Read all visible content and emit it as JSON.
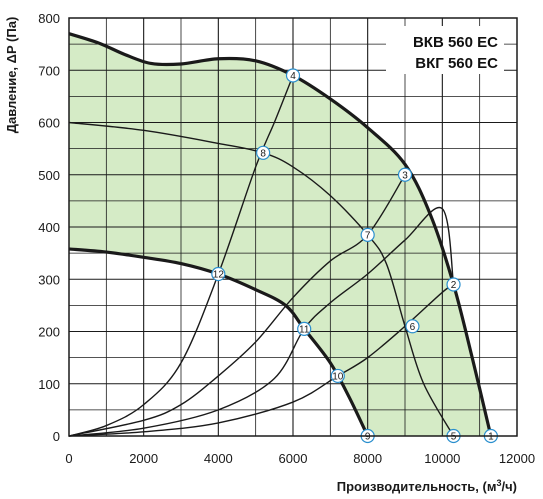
{
  "chart_data": {
    "type": "line",
    "xlabel": "Производительность, (м",
    "xlabel_sup": "3",
    "xlabel_tail": "/ч)",
    "ylabel": "Давление, ΔP (Па)",
    "xlim": [
      0,
      12000
    ],
    "ylim": [
      0,
      800
    ],
    "x_ticks": [
      0,
      2000,
      4000,
      6000,
      8000,
      10000,
      12000
    ],
    "y_ticks": [
      0,
      100,
      200,
      300,
      400,
      500,
      600,
      700,
      800
    ],
    "grid": true,
    "model_labels": [
      "ВКВ 560 ЕС",
      "ВКГ 560 ЕС"
    ],
    "colors": {
      "fill": "#d5ebc6",
      "curve": "#1a1a1a",
      "grid": "#1a1a1a",
      "marker_stroke": "#2a8fce",
      "marker_fill": "#ffffff"
    },
    "series": [
      {
        "name": "",
        "role": "max-speed",
        "points": [
          [
            0,
            770
          ],
          [
            800,
            752
          ],
          [
            1500,
            730
          ],
          [
            2200,
            713
          ],
          [
            3000,
            712
          ],
          [
            4000,
            722
          ],
          [
            5000,
            718
          ],
          [
            6000,
            690
          ],
          [
            7000,
            645
          ],
          [
            8000,
            590
          ],
          [
            9000,
            520
          ],
          [
            9700,
            420
          ],
          [
            10300,
            290
          ],
          [
            10800,
            150
          ],
          [
            11300,
            0
          ]
        ]
      },
      {
        "name": "",
        "role": "min-speed",
        "points": [
          [
            0,
            358
          ],
          [
            1000,
            352
          ],
          [
            2000,
            342
          ],
          [
            3000,
            330
          ],
          [
            4000,
            310
          ],
          [
            5000,
            280
          ],
          [
            5800,
            250
          ],
          [
            6300,
            205
          ],
          [
            7000,
            140
          ],
          [
            7500,
            75
          ],
          [
            8000,
            0
          ]
        ]
      },
      {
        "name": "",
        "role": "system-high",
        "points": [
          [
            0,
            0
          ],
          [
            1000,
            20
          ],
          [
            2000,
            60
          ],
          [
            3000,
            140
          ],
          [
            4000,
            310
          ],
          [
            5000,
            515
          ],
          [
            5500,
            600
          ],
          [
            6000,
            690
          ]
        ]
      },
      {
        "name": "",
        "role": "system-mid-1",
        "points": [
          [
            0,
            0
          ],
          [
            2000,
            30
          ],
          [
            3000,
            60
          ],
          [
            4000,
            115
          ],
          [
            5000,
            180
          ],
          [
            6000,
            265
          ],
          [
            7000,
            335
          ],
          [
            8000,
            385
          ],
          [
            9000,
            500
          ]
        ]
      },
      {
        "name": "",
        "role": "system-mid-2",
        "points": [
          [
            0,
            0
          ],
          [
            2000,
            15
          ],
          [
            4000,
            50
          ],
          [
            5500,
            110
          ],
          [
            6300,
            205
          ],
          [
            7000,
            255
          ],
          [
            8000,
            310
          ],
          [
            9000,
            375
          ],
          [
            10000,
            435
          ],
          [
            10300,
            290
          ]
        ]
      },
      {
        "name": "",
        "role": "system-low",
        "points": [
          [
            0,
            0
          ],
          [
            2000,
            8
          ],
          [
            4000,
            25
          ],
          [
            6000,
            65
          ],
          [
            7200,
            115
          ],
          [
            8000,
            150
          ],
          [
            9000,
            210
          ],
          [
            10000,
            275
          ],
          [
            10300,
            290
          ]
        ]
      },
      {
        "name": "",
        "role": "speed-8-curve",
        "points": [
          [
            0,
            600
          ],
          [
            2000,
            585
          ],
          [
            4000,
            560
          ],
          [
            5200,
            542
          ],
          [
            6000,
            515
          ],
          [
            7000,
            460
          ],
          [
            8000,
            385
          ],
          [
            8500,
            330
          ],
          [
            9000,
            210
          ],
          [
            9500,
            100
          ],
          [
            10300,
            0
          ]
        ]
      }
    ],
    "markers": [
      {
        "label": "1",
        "x": 11300,
        "y": 0
      },
      {
        "label": "2",
        "x": 10300,
        "y": 290
      },
      {
        "label": "3",
        "x": 9000,
        "y": 500
      },
      {
        "label": "4",
        "x": 6000,
        "y": 690
      },
      {
        "label": "5",
        "x": 10300,
        "y": 0
      },
      {
        "label": "6",
        "x": 9200,
        "y": 210
      },
      {
        "label": "7",
        "x": 8000,
        "y": 385
      },
      {
        "label": "8",
        "x": 5200,
        "y": 542
      },
      {
        "label": "9",
        "x": 8000,
        "y": 0
      },
      {
        "label": "10",
        "x": 7200,
        "y": 115
      },
      {
        "label": "11",
        "x": 6300,
        "y": 205
      },
      {
        "label": "12",
        "x": 4000,
        "y": 310
      }
    ]
  }
}
